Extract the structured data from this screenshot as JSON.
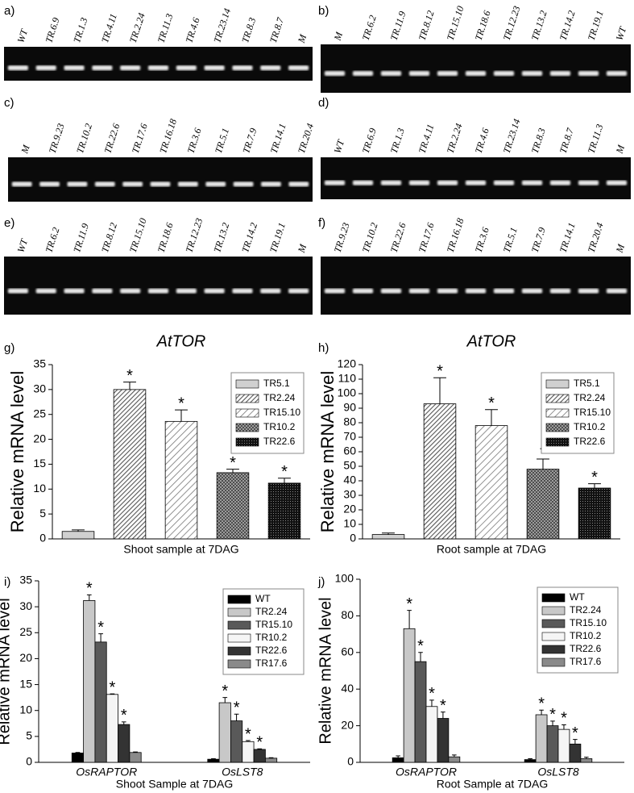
{
  "gels": [
    {
      "label": "a)",
      "lanes": [
        "WT",
        "TR.6.9",
        "TR.1.3",
        "TR.4.11",
        "TR.2.24",
        "TR.11.3",
        "TR.4.6",
        "TR.23.14",
        "TR.8.3",
        "TR.8.7",
        "M"
      ]
    },
    {
      "label": "b)",
      "lanes": [
        "M",
        "TR.6.2",
        "TR.11.9",
        "TR.8.12",
        "TR.15.10",
        "TR.18.6",
        "TR.12.23",
        "TR.13.2",
        "TR.14.2",
        "TR.19.1",
        "WT"
      ]
    },
    {
      "label": "c)",
      "lanes": [
        "M",
        "TR.9.23",
        "TR.10.2",
        "TR.22.6",
        "TR.17.6",
        "TR.16.18",
        "TR.3.6",
        "TR.5.1",
        "TR.7.9",
        "TR.14.1",
        "TR.20.4"
      ]
    },
    {
      "label": "d)",
      "lanes": [
        "WT",
        "TR.6.9",
        "TR.1.3",
        "TR.4.11",
        "TR.2.24",
        "TR.4.6",
        "TR.23.14",
        "TR.8.3",
        "TR.8.7",
        "TR.11.3",
        "M"
      ]
    },
    {
      "label": "e)",
      "lanes": [
        "WT",
        "TR.6.2",
        "TR.11.9",
        "TR.8.12",
        "TR.15.10",
        "TR.18.6",
        "TR.12.23",
        "TR.13.2",
        "TR.14.2",
        "TR.19.1",
        "M"
      ]
    },
    {
      "label": "f)",
      "lanes": [
        "TR.9.23",
        "TR.10.2",
        "TR.22.6",
        "TR.17.6",
        "TR.16.18",
        "TR.3.6",
        "TR.5.1",
        "TR.7.9",
        "TR.14.1",
        "TR.20.4",
        "M"
      ]
    }
  ],
  "chart_data": [
    {
      "type": "bar",
      "panel_label": "g)",
      "title": "AtTOR",
      "y_label": "Relative mRNA level",
      "x_label": "Shoot sample at 7DAG",
      "ylim": [
        0,
        35
      ],
      "yticks": [
        0,
        5,
        10,
        15,
        20,
        25,
        30,
        35
      ],
      "legend": "upper right",
      "series": [
        {
          "name": "TR5.1",
          "color": "#d0d0d0",
          "pattern": "solid",
          "values": [
            1.5
          ],
          "errors": [
            0.3
          ],
          "significance": [
            null
          ]
        },
        {
          "name": "TR2.24",
          "color": "#555555",
          "pattern": "hatch-dense",
          "values": [
            30.0
          ],
          "errors": [
            1.5
          ],
          "significance": [
            "*"
          ]
        },
        {
          "name": "TR15.10",
          "color": "#777777",
          "pattern": "hatch",
          "values": [
            23.6
          ],
          "errors": [
            2.3
          ],
          "significance": [
            "*"
          ]
        },
        {
          "name": "TR10.2",
          "color": "#444444",
          "pattern": "cross",
          "values": [
            13.3
          ],
          "errors": [
            0.7
          ],
          "significance": [
            "*"
          ]
        },
        {
          "name": "TR22.6",
          "color": "#111111",
          "pattern": "dots",
          "values": [
            11.2
          ],
          "errors": [
            1.0
          ],
          "significance": [
            "*"
          ]
        }
      ]
    },
    {
      "type": "bar",
      "panel_label": "h)",
      "title": "AtTOR",
      "y_label": "Relative mRNA level",
      "x_label": "Root sample at 7DAG",
      "ylim": [
        0,
        120
      ],
      "yticks": [
        0,
        10,
        20,
        30,
        40,
        50,
        60,
        70,
        80,
        90,
        100,
        110,
        120
      ],
      "legend": "upper right",
      "series": [
        {
          "name": "TR5.1",
          "color": "#d0d0d0",
          "pattern": "solid",
          "values": [
            3
          ],
          "errors": [
            1
          ],
          "significance": [
            null
          ]
        },
        {
          "name": "TR2.24",
          "color": "#555555",
          "pattern": "hatch-dense",
          "values": [
            93
          ],
          "errors": [
            18
          ],
          "significance": [
            "*"
          ]
        },
        {
          "name": "TR15.10",
          "color": "#777777",
          "pattern": "hatch",
          "values": [
            78
          ],
          "errors": [
            11
          ],
          "significance": [
            "*"
          ]
        },
        {
          "name": "TR10.2",
          "color": "#444444",
          "pattern": "cross",
          "values": [
            48
          ],
          "errors": [
            7
          ],
          "significance": [
            "*"
          ]
        },
        {
          "name": "TR22.6",
          "color": "#111111",
          "pattern": "dots",
          "values": [
            35
          ],
          "errors": [
            3
          ],
          "significance": [
            "*"
          ]
        }
      ]
    },
    {
      "type": "bar",
      "panel_label": "i)",
      "y_label": "Relative mRNA level",
      "x_label": "Shoot Sample at 7DAG",
      "categories": [
        "OsRAPTOR",
        "OsLST8"
      ],
      "ylim": [
        0,
        35
      ],
      "yticks": [
        0,
        5,
        10,
        15,
        20,
        25,
        30,
        35
      ],
      "legend": "upper right",
      "series": [
        {
          "name": "WT",
          "color": "#000000",
          "pattern": "solid",
          "values": [
            1.8,
            0.6
          ],
          "errors": [
            0.1,
            0.1
          ],
          "significance": [
            null,
            null
          ]
        },
        {
          "name": "TR2.24",
          "color": "#c8c8c8",
          "pattern": "solid",
          "values": [
            31.2,
            11.5
          ],
          "errors": [
            1.1,
            1.0
          ],
          "significance": [
            "*",
            "*"
          ]
        },
        {
          "name": "TR15.10",
          "color": "#595959",
          "pattern": "solid",
          "values": [
            23.2,
            8.0
          ],
          "errors": [
            1.6,
            1.3
          ],
          "significance": [
            "*",
            "*"
          ]
        },
        {
          "name": "TR10.2",
          "color": "#f5f5f5",
          "pattern": "solid",
          "values": [
            13.1,
            4.0
          ],
          "errors": [
            0.1,
            0.2
          ],
          "significance": [
            "*",
            "*"
          ]
        },
        {
          "name": "TR22.6",
          "color": "#333333",
          "pattern": "solid",
          "values": [
            7.3,
            2.5
          ],
          "errors": [
            0.5,
            0.1
          ],
          "significance": [
            "*",
            "*"
          ]
        },
        {
          "name": "TR17.6",
          "color": "#8a8a8a",
          "pattern": "solid",
          "values": [
            1.9,
            0.8
          ],
          "errors": [
            0.1,
            0.1
          ],
          "significance": [
            null,
            null
          ]
        }
      ]
    },
    {
      "type": "bar",
      "panel_label": "j)",
      "y_label": "Relative mRNA level",
      "x_label": "Root Sample at 7DAG",
      "categories": [
        "OsRAPTOR",
        "OsLST8"
      ],
      "ylim": [
        0,
        100
      ],
      "yticks": [
        0,
        20,
        40,
        60,
        80,
        100
      ],
      "legend": "upper right",
      "series": [
        {
          "name": "WT",
          "color": "#000000",
          "pattern": "solid",
          "values": [
            2.5,
            1.5
          ],
          "errors": [
            1,
            0.5
          ],
          "significance": [
            null,
            null
          ]
        },
        {
          "name": "TR2.24",
          "color": "#c8c8c8",
          "pattern": "solid",
          "values": [
            73,
            26
          ],
          "errors": [
            10,
            2.5
          ],
          "significance": [
            "*",
            "*"
          ]
        },
        {
          "name": "TR15.10",
          "color": "#595959",
          "pattern": "solid",
          "values": [
            55,
            20
          ],
          "errors": [
            5,
            2.5
          ],
          "significance": [
            "*",
            "*"
          ]
        },
        {
          "name": "TR10.2",
          "color": "#f5f5f5",
          "pattern": "solid",
          "values": [
            30.5,
            18
          ],
          "errors": [
            3.5,
            2.5
          ],
          "significance": [
            "*",
            "*"
          ]
        },
        {
          "name": "TR22.6",
          "color": "#333333",
          "pattern": "solid",
          "values": [
            24,
            10
          ],
          "errors": [
            3.5,
            2.5
          ],
          "significance": [
            "*",
            "*"
          ]
        },
        {
          "name": "TR17.6",
          "color": "#8a8a8a",
          "pattern": "solid",
          "values": [
            3,
            2
          ],
          "errors": [
            1,
            0.8
          ],
          "significance": [
            null,
            null
          ]
        }
      ]
    }
  ]
}
